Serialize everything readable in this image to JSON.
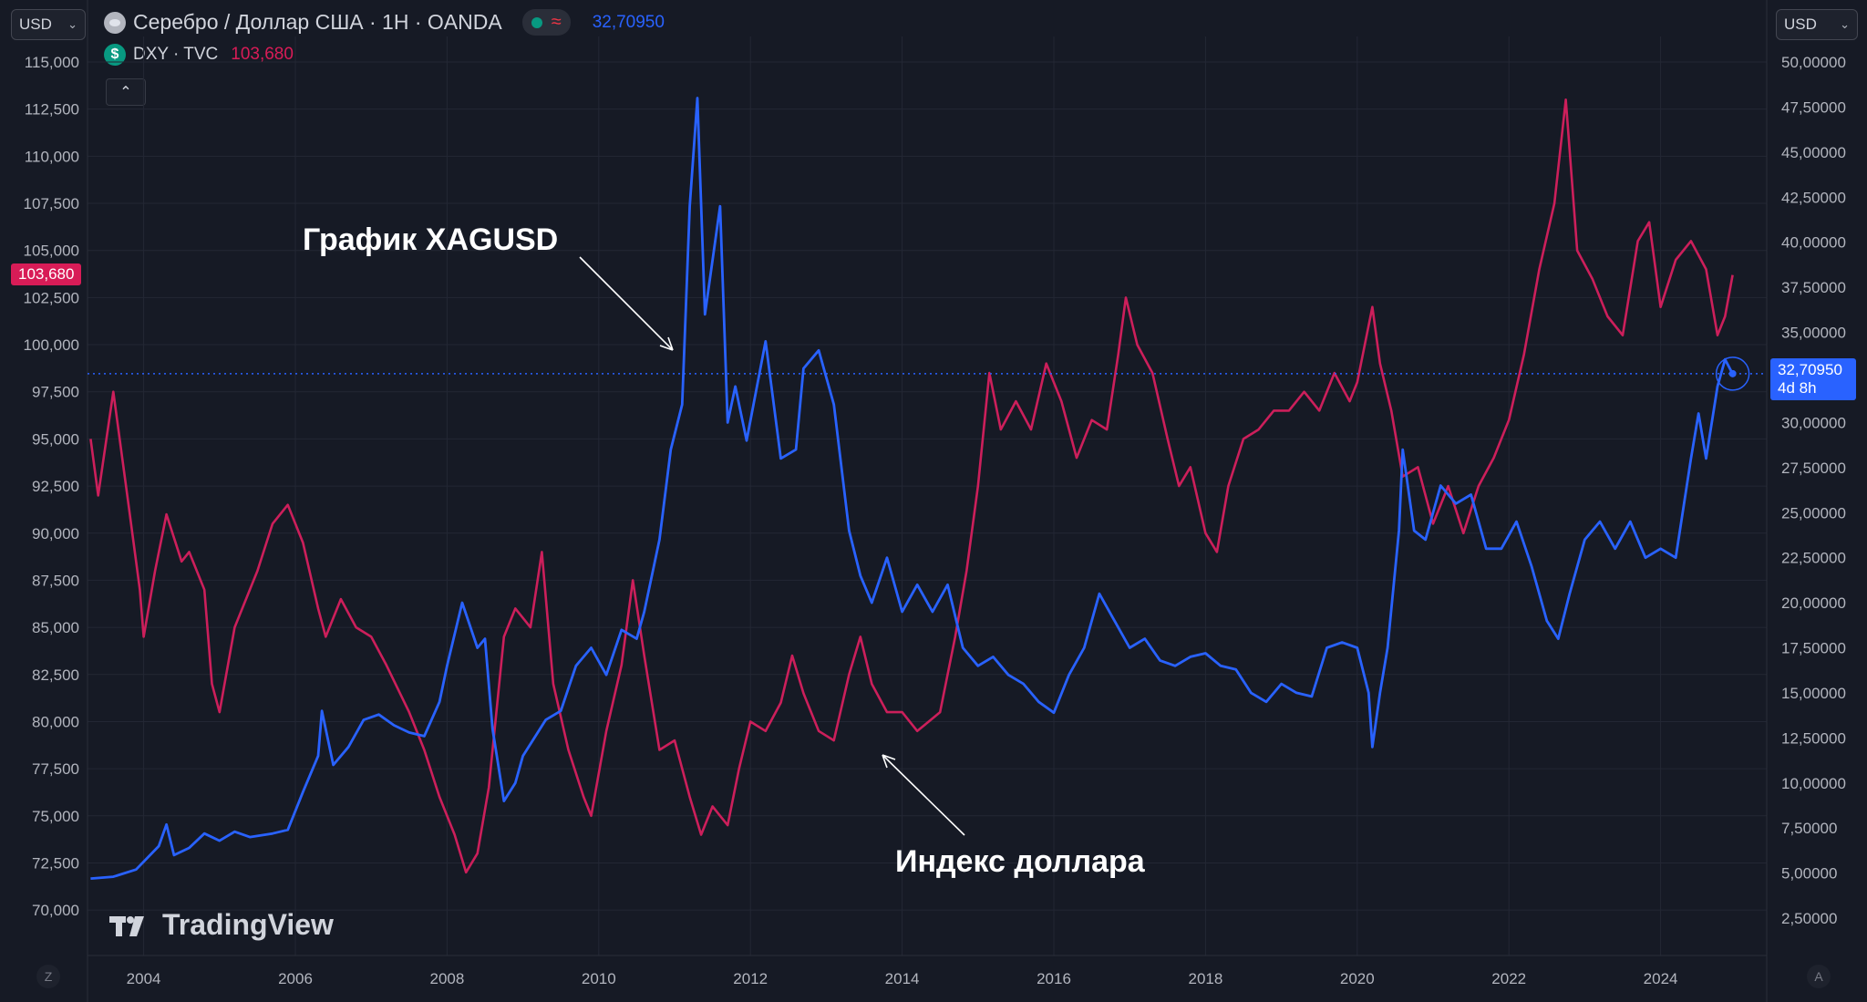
{
  "toolbar": {
    "left_currency": "USD",
    "right_currency": "USD",
    "main_symbol": "Серебро / Доллар США · 1Н · OANDA",
    "main_value": "32,70950",
    "second_symbol": "DXY · TVC",
    "second_value": "103,680",
    "dxy_icon_glyph": "$",
    "approx_glyph": "≈",
    "collapse_glyph": "⌃"
  },
  "price_badges": {
    "left": "103,680",
    "right_price": "32,70950",
    "right_countdown": "4d 8h"
  },
  "annotations": {
    "silver_label": "График XAGUSD",
    "dollar_label": "Индекс доллара"
  },
  "watermark": {
    "text": "TradingView"
  },
  "corner_buttons": {
    "left": "Z",
    "right": "A"
  },
  "colors": {
    "background": "#161a25",
    "silver_line": "#2962ff",
    "dxy_line": "#cc1f5b",
    "grid": "#232734",
    "axis_text": "#b2b5be",
    "dxy_badge": "#d81c57",
    "silver_badge": "#2962ff"
  },
  "chart_data": {
    "type": "line",
    "x_ticks": [
      "2004",
      "2006",
      "2008",
      "2010",
      "2012",
      "2014",
      "2016",
      "2018",
      "2020",
      "2022",
      "2024"
    ],
    "left_axis": {
      "series": "DXY · TVC",
      "ticks": [
        "115,000",
        "112,500",
        "110,000",
        "107,500",
        "105,000",
        "102,500",
        "100,000",
        "97,500",
        "95,000",
        "92,500",
        "90,000",
        "87,500",
        "85,000",
        "82,500",
        "80,000",
        "77,500",
        "75,000",
        "72,500",
        "70,000"
      ],
      "range": [
        69,
        116
      ]
    },
    "right_axis": {
      "series": "Серебро / Доллар США · 1Н · OANDA",
      "ticks": [
        "50,00000",
        "47,50000",
        "45,00000",
        "42,50000",
        "40,00000",
        "37,50000",
        "35,00000",
        "32,50000",
        "30,00000",
        "27,50000",
        "25,00000",
        "22,50000",
        "20,00000",
        "17,50000",
        "15,00000",
        "12,50000",
        "10,00000",
        "7,50000",
        "5,00000",
        "2,50000"
      ],
      "range": [
        1.5,
        51.5
      ]
    },
    "series": [
      {
        "name": "Серебро / Доллар США · 1Н · OANDA",
        "axis": "right",
        "color": "#2962ff",
        "points": [
          [
            2003.3,
            4.7
          ],
          [
            2003.6,
            4.8
          ],
          [
            2003.9,
            5.2
          ],
          [
            2004.2,
            6.5
          ],
          [
            2004.3,
            7.7
          ],
          [
            2004.4,
            6.0
          ],
          [
            2004.6,
            6.4
          ],
          [
            2004.8,
            7.2
          ],
          [
            2005.0,
            6.8
          ],
          [
            2005.2,
            7.3
          ],
          [
            2005.4,
            7.0
          ],
          [
            2005.7,
            7.2
          ],
          [
            2005.9,
            7.4
          ],
          [
            2006.1,
            9.5
          ],
          [
            2006.3,
            11.5
          ],
          [
            2006.35,
            14.0
          ],
          [
            2006.5,
            11.0
          ],
          [
            2006.7,
            12.0
          ],
          [
            2006.9,
            13.5
          ],
          [
            2007.1,
            13.8
          ],
          [
            2007.3,
            13.2
          ],
          [
            2007.5,
            12.8
          ],
          [
            2007.7,
            12.6
          ],
          [
            2007.9,
            14.5
          ],
          [
            2008.0,
            16.5
          ],
          [
            2008.2,
            20.0
          ],
          [
            2008.4,
            17.5
          ],
          [
            2008.5,
            18.0
          ],
          [
            2008.6,
            13.0
          ],
          [
            2008.75,
            9.0
          ],
          [
            2008.9,
            10.0
          ],
          [
            2009.0,
            11.5
          ],
          [
            2009.3,
            13.5
          ],
          [
            2009.5,
            14.0
          ],
          [
            2009.7,
            16.5
          ],
          [
            2009.9,
            17.5
          ],
          [
            2010.1,
            16.0
          ],
          [
            2010.3,
            18.5
          ],
          [
            2010.5,
            18.0
          ],
          [
            2010.6,
            19.5
          ],
          [
            2010.8,
            23.5
          ],
          [
            2010.95,
            28.5
          ],
          [
            2011.1,
            31.0
          ],
          [
            2011.2,
            42.0
          ],
          [
            2011.3,
            48.0
          ],
          [
            2011.4,
            36.0
          ],
          [
            2011.5,
            39.0
          ],
          [
            2011.6,
            42.0
          ],
          [
            2011.7,
            30.0
          ],
          [
            2011.8,
            32.0
          ],
          [
            2011.95,
            29.0
          ],
          [
            2012.2,
            34.5
          ],
          [
            2012.4,
            28.0
          ],
          [
            2012.6,
            28.5
          ],
          [
            2012.7,
            33.0
          ],
          [
            2012.9,
            34.0
          ],
          [
            2013.1,
            31.0
          ],
          [
            2013.3,
            24.0
          ],
          [
            2013.45,
            21.5
          ],
          [
            2013.6,
            20.0
          ],
          [
            2013.8,
            22.5
          ],
          [
            2014.0,
            19.5
          ],
          [
            2014.2,
            21.0
          ],
          [
            2014.4,
            19.5
          ],
          [
            2014.6,
            21.0
          ],
          [
            2014.8,
            17.5
          ],
          [
            2015.0,
            16.5
          ],
          [
            2015.2,
            17.0
          ],
          [
            2015.4,
            16.0
          ],
          [
            2015.6,
            15.5
          ],
          [
            2015.8,
            14.5
          ],
          [
            2016.0,
            13.9
          ],
          [
            2016.2,
            16.0
          ],
          [
            2016.4,
            17.5
          ],
          [
            2016.6,
            20.5
          ],
          [
            2016.8,
            19.0
          ],
          [
            2017.0,
            17.5
          ],
          [
            2017.2,
            18.0
          ],
          [
            2017.4,
            16.8
          ],
          [
            2017.6,
            16.5
          ],
          [
            2017.8,
            17.0
          ],
          [
            2018.0,
            17.2
          ],
          [
            2018.2,
            16.5
          ],
          [
            2018.4,
            16.3
          ],
          [
            2018.6,
            15.0
          ],
          [
            2018.8,
            14.5
          ],
          [
            2019.0,
            15.5
          ],
          [
            2019.2,
            15.0
          ],
          [
            2019.4,
            14.8
          ],
          [
            2019.6,
            17.5
          ],
          [
            2019.8,
            17.8
          ],
          [
            2020.0,
            17.5
          ],
          [
            2020.15,
            15.0
          ],
          [
            2020.2,
            12.0
          ],
          [
            2020.3,
            15.0
          ],
          [
            2020.4,
            17.5
          ],
          [
            2020.55,
            24.0
          ],
          [
            2020.6,
            28.5
          ],
          [
            2020.75,
            24.0
          ],
          [
            2020.9,
            23.5
          ],
          [
            2021.1,
            26.5
          ],
          [
            2021.3,
            25.5
          ],
          [
            2021.5,
            26.0
          ],
          [
            2021.7,
            23.0
          ],
          [
            2021.9,
            23.0
          ],
          [
            2022.1,
            24.5
          ],
          [
            2022.3,
            22.0
          ],
          [
            2022.5,
            19.0
          ],
          [
            2022.65,
            18.0
          ],
          [
            2022.8,
            20.5
          ],
          [
            2023.0,
            23.5
          ],
          [
            2023.2,
            24.5
          ],
          [
            2023.4,
            23.0
          ],
          [
            2023.6,
            24.5
          ],
          [
            2023.8,
            22.5
          ],
          [
            2024.0,
            23.0
          ],
          [
            2024.2,
            22.5
          ],
          [
            2024.4,
            28.0
          ],
          [
            2024.5,
            30.5
          ],
          [
            2024.6,
            28.0
          ],
          [
            2024.75,
            32.0
          ],
          [
            2024.85,
            33.5
          ],
          [
            2024.95,
            32.7
          ]
        ]
      },
      {
        "name": "DXY · TVC",
        "axis": "left",
        "color": "#cc1f5b",
        "points": [
          [
            2003.3,
            95.0
          ],
          [
            2003.4,
            92.0
          ],
          [
            2003.6,
            97.5
          ],
          [
            2003.8,
            91.5
          ],
          [
            2003.95,
            87.0
          ],
          [
            2004.0,
            84.5
          ],
          [
            2004.15,
            88.0
          ],
          [
            2004.3,
            91.0
          ],
          [
            2004.5,
            88.5
          ],
          [
            2004.6,
            89.0
          ],
          [
            2004.8,
            87.0
          ],
          [
            2004.9,
            82.0
          ],
          [
            2005.0,
            80.5
          ],
          [
            2005.2,
            85.0
          ],
          [
            2005.5,
            88.0
          ],
          [
            2005.7,
            90.5
          ],
          [
            2005.9,
            91.5
          ],
          [
            2006.1,
            89.5
          ],
          [
            2006.3,
            86.0
          ],
          [
            2006.4,
            84.5
          ],
          [
            2006.6,
            86.5
          ],
          [
            2006.8,
            85.0
          ],
          [
            2007.0,
            84.5
          ],
          [
            2007.2,
            83.0
          ],
          [
            2007.5,
            80.5
          ],
          [
            2007.7,
            78.5
          ],
          [
            2007.9,
            76.0
          ],
          [
            2008.1,
            74.0
          ],
          [
            2008.25,
            72.0
          ],
          [
            2008.4,
            73.0
          ],
          [
            2008.55,
            76.5
          ],
          [
            2008.75,
            84.5
          ],
          [
            2008.9,
            86.0
          ],
          [
            2009.1,
            85.0
          ],
          [
            2009.25,
            89.0
          ],
          [
            2009.4,
            82.0
          ],
          [
            2009.6,
            78.5
          ],
          [
            2009.8,
            76.0
          ],
          [
            2009.9,
            75.0
          ],
          [
            2010.1,
            79.5
          ],
          [
            2010.3,
            83.0
          ],
          [
            2010.45,
            87.5
          ],
          [
            2010.6,
            83.5
          ],
          [
            2010.8,
            78.5
          ],
          [
            2011.0,
            79.0
          ],
          [
            2011.2,
            76.0
          ],
          [
            2011.35,
            74.0
          ],
          [
            2011.5,
            75.5
          ],
          [
            2011.7,
            74.5
          ],
          [
            2011.85,
            77.5
          ],
          [
            2012.0,
            80.0
          ],
          [
            2012.2,
            79.5
          ],
          [
            2012.4,
            81.0
          ],
          [
            2012.55,
            83.5
          ],
          [
            2012.7,
            81.5
          ],
          [
            2012.9,
            79.5
          ],
          [
            2013.1,
            79.0
          ],
          [
            2013.3,
            82.5
          ],
          [
            2013.45,
            84.5
          ],
          [
            2013.6,
            82.0
          ],
          [
            2013.8,
            80.5
          ],
          [
            2014.0,
            80.5
          ],
          [
            2014.2,
            79.5
          ],
          [
            2014.35,
            80.0
          ],
          [
            2014.5,
            80.5
          ],
          [
            2014.7,
            84.5
          ],
          [
            2014.85,
            88.0
          ],
          [
            2015.0,
            92.5
          ],
          [
            2015.15,
            98.5
          ],
          [
            2015.3,
            95.5
          ],
          [
            2015.5,
            97.0
          ],
          [
            2015.7,
            95.5
          ],
          [
            2015.9,
            99.0
          ],
          [
            2016.1,
            97.0
          ],
          [
            2016.3,
            94.0
          ],
          [
            2016.5,
            96.0
          ],
          [
            2016.7,
            95.5
          ],
          [
            2016.85,
            99.5
          ],
          [
            2016.95,
            102.5
          ],
          [
            2017.1,
            100.0
          ],
          [
            2017.3,
            98.5
          ],
          [
            2017.5,
            95.0
          ],
          [
            2017.65,
            92.5
          ],
          [
            2017.8,
            93.5
          ],
          [
            2018.0,
            90.0
          ],
          [
            2018.15,
            89.0
          ],
          [
            2018.3,
            92.5
          ],
          [
            2018.5,
            95.0
          ],
          [
            2018.7,
            95.5
          ],
          [
            2018.9,
            96.5
          ],
          [
            2019.1,
            96.5
          ],
          [
            2019.3,
            97.5
          ],
          [
            2019.5,
            96.5
          ],
          [
            2019.7,
            98.5
          ],
          [
            2019.9,
            97.0
          ],
          [
            2020.0,
            98.0
          ],
          [
            2020.2,
            102.0
          ],
          [
            2020.3,
            99.0
          ],
          [
            2020.45,
            96.5
          ],
          [
            2020.6,
            93.0
          ],
          [
            2020.8,
            93.5
          ],
          [
            2021.0,
            90.5
          ],
          [
            2021.2,
            92.5
          ],
          [
            2021.4,
            90.0
          ],
          [
            2021.6,
            92.5
          ],
          [
            2021.8,
            94.0
          ],
          [
            2022.0,
            96.0
          ],
          [
            2022.2,
            99.5
          ],
          [
            2022.4,
            104.0
          ],
          [
            2022.6,
            107.5
          ],
          [
            2022.75,
            113.0
          ],
          [
            2022.9,
            105.0
          ],
          [
            2023.1,
            103.5
          ],
          [
            2023.3,
            101.5
          ],
          [
            2023.5,
            100.5
          ],
          [
            2023.7,
            105.5
          ],
          [
            2023.85,
            106.5
          ],
          [
            2024.0,
            102.0
          ],
          [
            2024.2,
            104.5
          ],
          [
            2024.4,
            105.5
          ],
          [
            2024.6,
            104.0
          ],
          [
            2024.75,
            100.5
          ],
          [
            2024.85,
            101.5
          ],
          [
            2024.95,
            103.7
          ]
        ]
      }
    ],
    "current_level": 32.7095
  }
}
